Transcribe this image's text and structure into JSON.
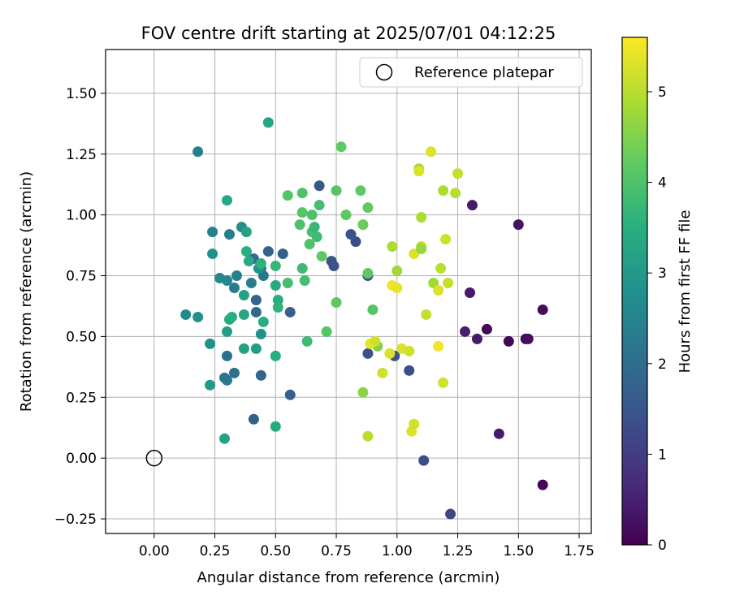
{
  "chart_data": {
    "type": "scatter",
    "title": "FOV centre drift starting at 2025/07/01 04:12:25",
    "xlabel": "Angular distance from reference (arcmin)",
    "ylabel": "Rotation from reference (arcmin)",
    "xlim": [
      -0.2,
      1.8
    ],
    "ylim": [
      -0.31,
      1.68
    ],
    "xticks": [
      0.0,
      0.25,
      0.5,
      0.75,
      1.0,
      1.25,
      1.5,
      1.75
    ],
    "xtick_labels": [
      "0.00",
      "0.25",
      "0.50",
      "0.75",
      "1.00",
      "1.25",
      "1.50",
      "1.75"
    ],
    "yticks": [
      -0.25,
      0.0,
      0.25,
      0.5,
      0.75,
      1.0,
      1.25,
      1.5
    ],
    "ytick_labels": [
      "−0.25",
      "0.00",
      "0.25",
      "0.50",
      "0.75",
      "1.00",
      "1.25",
      "1.50"
    ],
    "grid": true,
    "legend": {
      "location": "top-right",
      "entries": [
        {
          "label": "Reference platepar",
          "marker": "open-circle"
        }
      ]
    },
    "reference_point": {
      "x": 0.0,
      "y": 0.0
    },
    "colorbar": {
      "label": "Hours from first FF file",
      "colormap": "viridis",
      "range": [
        0,
        5.6
      ],
      "ticks": [
        0,
        1,
        2,
        3,
        4,
        5
      ],
      "tick_labels": [
        "0",
        "1",
        "2",
        "3",
        "4",
        "5"
      ]
    },
    "points": [
      {
        "x": 1.6,
        "y": -0.11,
        "t": 0.1
      },
      {
        "x": 1.53,
        "y": 0.49,
        "t": 0.1
      },
      {
        "x": 1.46,
        "y": 0.48,
        "t": 0.1
      },
      {
        "x": 1.37,
        "y": 0.53,
        "t": 0.1
      },
      {
        "x": 1.6,
        "y": 0.61,
        "t": 0.2
      },
      {
        "x": 1.54,
        "y": 0.49,
        "t": 0.2
      },
      {
        "x": 1.5,
        "y": 0.96,
        "t": 0.3
      },
      {
        "x": 1.42,
        "y": 0.1,
        "t": 0.4
      },
      {
        "x": 1.33,
        "y": 0.49,
        "t": 0.4
      },
      {
        "x": 1.28,
        "y": 0.52,
        "t": 0.5
      },
      {
        "x": 1.31,
        "y": 1.04,
        "t": 0.4
      },
      {
        "x": 1.3,
        "y": 0.68,
        "t": 0.4
      },
      {
        "x": 1.22,
        "y": -0.23,
        "t": 1.2
      },
      {
        "x": 1.11,
        "y": -0.01,
        "t": 1.3
      },
      {
        "x": 1.05,
        "y": 0.36,
        "t": 1.3
      },
      {
        "x": 0.99,
        "y": 0.42,
        "t": 1.4
      },
      {
        "x": 0.88,
        "y": 0.43,
        "t": 1.4
      },
      {
        "x": 0.83,
        "y": 0.89,
        "t": 1.3
      },
      {
        "x": 0.81,
        "y": 0.92,
        "t": 1.4
      },
      {
        "x": 0.88,
        "y": 0.75,
        "t": 1.4
      },
      {
        "x": 0.74,
        "y": 0.79,
        "t": 1.4
      },
      {
        "x": 0.73,
        "y": 0.81,
        "t": 1.4
      },
      {
        "x": 0.68,
        "y": 1.12,
        "t": 1.5
      },
      {
        "x": 0.56,
        "y": 0.26,
        "t": 1.7
      },
      {
        "x": 0.56,
        "y": 0.6,
        "t": 1.7
      },
      {
        "x": 0.53,
        "y": 0.84,
        "t": 1.7
      },
      {
        "x": 0.47,
        "y": 0.85,
        "t": 1.7
      },
      {
        "x": 0.44,
        "y": 0.34,
        "t": 1.8
      },
      {
        "x": 0.41,
        "y": 0.16,
        "t": 1.7
      },
      {
        "x": 0.42,
        "y": 0.65,
        "t": 1.8
      },
      {
        "x": 0.42,
        "y": 0.6,
        "t": 1.9
      },
      {
        "x": 0.41,
        "y": 0.82,
        "t": 1.9
      },
      {
        "x": 0.44,
        "y": 0.78,
        "t": 2.0
      },
      {
        "x": 0.45,
        "y": 0.75,
        "t": 2.2
      },
      {
        "x": 0.4,
        "y": 0.72,
        "t": 2.3
      },
      {
        "x": 0.3,
        "y": 0.42,
        "t": 2.1
      },
      {
        "x": 0.3,
        "y": 0.32,
        "t": 2.3
      },
      {
        "x": 0.29,
        "y": 0.33,
        "t": 2.2
      },
      {
        "x": 0.33,
        "y": 0.35,
        "t": 2.1
      },
      {
        "x": 0.33,
        "y": 0.7,
        "t": 2.3
      },
      {
        "x": 0.34,
        "y": 0.75,
        "t": 2.4
      },
      {
        "x": 0.3,
        "y": 0.73,
        "t": 2.5
      },
      {
        "x": 0.27,
        "y": 0.74,
        "t": 2.6
      },
      {
        "x": 0.31,
        "y": 0.92,
        "t": 2.4
      },
      {
        "x": 0.24,
        "y": 0.93,
        "t": 2.4
      },
      {
        "x": 0.18,
        "y": 1.26,
        "t": 2.4
      },
      {
        "x": 0.13,
        "y": 0.59,
        "t": 2.6
      },
      {
        "x": 0.18,
        "y": 0.58,
        "t": 2.8
      },
      {
        "x": 0.23,
        "y": 0.47,
        "t": 2.8
      },
      {
        "x": 0.24,
        "y": 0.84,
        "t": 2.8
      },
      {
        "x": 0.36,
        "y": 0.95,
        "t": 2.7
      },
      {
        "x": 0.38,
        "y": 0.93,
        "t": 3.2
      },
      {
        "x": 0.3,
        "y": 1.06,
        "t": 3.3
      },
      {
        "x": 0.23,
        "y": 0.3,
        "t": 3.0
      },
      {
        "x": 0.3,
        "y": 0.52,
        "t": 3.1
      },
      {
        "x": 0.31,
        "y": 0.57,
        "t": 3.4
      },
      {
        "x": 0.32,
        "y": 0.58,
        "t": 3.5
      },
      {
        "x": 0.37,
        "y": 0.59,
        "t": 3.3
      },
      {
        "x": 0.37,
        "y": 0.67,
        "t": 3.2
      },
      {
        "x": 0.37,
        "y": 0.45,
        "t": 3.2
      },
      {
        "x": 0.42,
        "y": 0.45,
        "t": 3.1
      },
      {
        "x": 0.43,
        "y": 0.78,
        "t": 2.9
      },
      {
        "x": 0.44,
        "y": 0.51,
        "t": 2.8
      },
      {
        "x": 0.29,
        "y": 0.08,
        "t": 3.2
      },
      {
        "x": 0.38,
        "y": 0.85,
        "t": 3.5
      },
      {
        "x": 0.39,
        "y": 0.81,
        "t": 3.4
      },
      {
        "x": 0.44,
        "y": 0.8,
        "t": 3.6
      },
      {
        "x": 0.45,
        "y": 0.56,
        "t": 3.5
      },
      {
        "x": 0.47,
        "y": 1.38,
        "t": 3.3
      },
      {
        "x": 0.5,
        "y": 0.71,
        "t": 3.4
      },
      {
        "x": 0.5,
        "y": 0.42,
        "t": 3.5
      },
      {
        "x": 0.51,
        "y": 0.65,
        "t": 3.5
      },
      {
        "x": 0.51,
        "y": 0.62,
        "t": 3.6
      },
      {
        "x": 0.5,
        "y": 0.13,
        "t": 3.4
      },
      {
        "x": 0.5,
        "y": 0.79,
        "t": 3.7
      },
      {
        "x": 0.55,
        "y": 0.72,
        "t": 3.9
      },
      {
        "x": 0.61,
        "y": 0.78,
        "t": 3.8
      },
      {
        "x": 0.62,
        "y": 0.73,
        "t": 3.9
      },
      {
        "x": 0.63,
        "y": 0.48,
        "t": 3.8
      },
      {
        "x": 0.65,
        "y": 0.93,
        "t": 3.9
      },
      {
        "x": 0.66,
        "y": 0.95,
        "t": 3.7
      },
      {
        "x": 0.67,
        "y": 0.91,
        "t": 3.8
      },
      {
        "x": 0.68,
        "y": 1.04,
        "t": 3.9
      },
      {
        "x": 0.64,
        "y": 0.88,
        "t": 4.0
      },
      {
        "x": 0.65,
        "y": 1.0,
        "t": 4.0
      },
      {
        "x": 0.61,
        "y": 1.01,
        "t": 4.1
      },
      {
        "x": 0.6,
        "y": 0.96,
        "t": 4.0
      },
      {
        "x": 0.61,
        "y": 1.09,
        "t": 4.0
      },
      {
        "x": 0.55,
        "y": 1.08,
        "t": 4.1
      },
      {
        "x": 0.69,
        "y": 0.83,
        "t": 4.2
      },
      {
        "x": 0.71,
        "y": 0.52,
        "t": 4.1
      },
      {
        "x": 0.75,
        "y": 0.64,
        "t": 4.2
      },
      {
        "x": 0.75,
        "y": 1.1,
        "t": 4.1
      },
      {
        "x": 0.77,
        "y": 1.28,
        "t": 4.2
      },
      {
        "x": 0.79,
        "y": 1.0,
        "t": 4.2
      },
      {
        "x": 0.85,
        "y": 1.1,
        "t": 4.2
      },
      {
        "x": 0.86,
        "y": 0.96,
        "t": 4.3
      },
      {
        "x": 0.88,
        "y": 1.03,
        "t": 4.2
      },
      {
        "x": 0.88,
        "y": 0.76,
        "t": 4.2
      },
      {
        "x": 0.9,
        "y": 0.61,
        "t": 4.1
      },
      {
        "x": 0.92,
        "y": 0.46,
        "t": 4.5
      },
      {
        "x": 0.86,
        "y": 0.27,
        "t": 4.6
      },
      {
        "x": 0.88,
        "y": 0.09,
        "t": 5.0
      },
      {
        "x": 0.89,
        "y": 0.47,
        "t": 5.4
      },
      {
        "x": 0.91,
        "y": 0.48,
        "t": 5.2
      },
      {
        "x": 0.94,
        "y": 0.35,
        "t": 5.2
      },
      {
        "x": 0.97,
        "y": 0.43,
        "t": 5.3
      },
      {
        "x": 0.98,
        "y": 0.87,
        "t": 4.9
      },
      {
        "x": 0.98,
        "y": 0.71,
        "t": 5.5
      },
      {
        "x": 1.0,
        "y": 0.7,
        "t": 5.4
      },
      {
        "x": 1.0,
        "y": 0.77,
        "t": 4.8
      },
      {
        "x": 1.02,
        "y": 0.45,
        "t": 5.3
      },
      {
        "x": 1.05,
        "y": 0.44,
        "t": 5.2
      },
      {
        "x": 1.06,
        "y": 0.11,
        "t": 5.3
      },
      {
        "x": 1.07,
        "y": 0.14,
        "t": 5.2
      },
      {
        "x": 1.07,
        "y": 0.84,
        "t": 5.3
      },
      {
        "x": 1.09,
        "y": 1.19,
        "t": 4.8
      },
      {
        "x": 1.09,
        "y": 1.18,
        "t": 5.3
      },
      {
        "x": 1.1,
        "y": 0.99,
        "t": 4.9
      },
      {
        "x": 1.1,
        "y": 0.87,
        "t": 5.1
      },
      {
        "x": 1.1,
        "y": 0.86,
        "t": 4.7
      },
      {
        "x": 1.12,
        "y": 0.59,
        "t": 5.1
      },
      {
        "x": 1.14,
        "y": 1.26,
        "t": 5.3
      },
      {
        "x": 1.15,
        "y": 0.72,
        "t": 4.8
      },
      {
        "x": 1.17,
        "y": 0.46,
        "t": 5.5
      },
      {
        "x": 1.17,
        "y": 0.69,
        "t": 5.3
      },
      {
        "x": 1.18,
        "y": 0.78,
        "t": 5.0
      },
      {
        "x": 1.19,
        "y": 0.31,
        "t": 5.2
      },
      {
        "x": 1.19,
        "y": 1.1,
        "t": 4.9
      },
      {
        "x": 1.2,
        "y": 0.9,
        "t": 5.2
      },
      {
        "x": 1.21,
        "y": 0.72,
        "t": 5.1
      },
      {
        "x": 1.24,
        "y": 1.09,
        "t": 5.0
      },
      {
        "x": 1.25,
        "y": 1.17,
        "t": 5.1
      }
    ]
  }
}
